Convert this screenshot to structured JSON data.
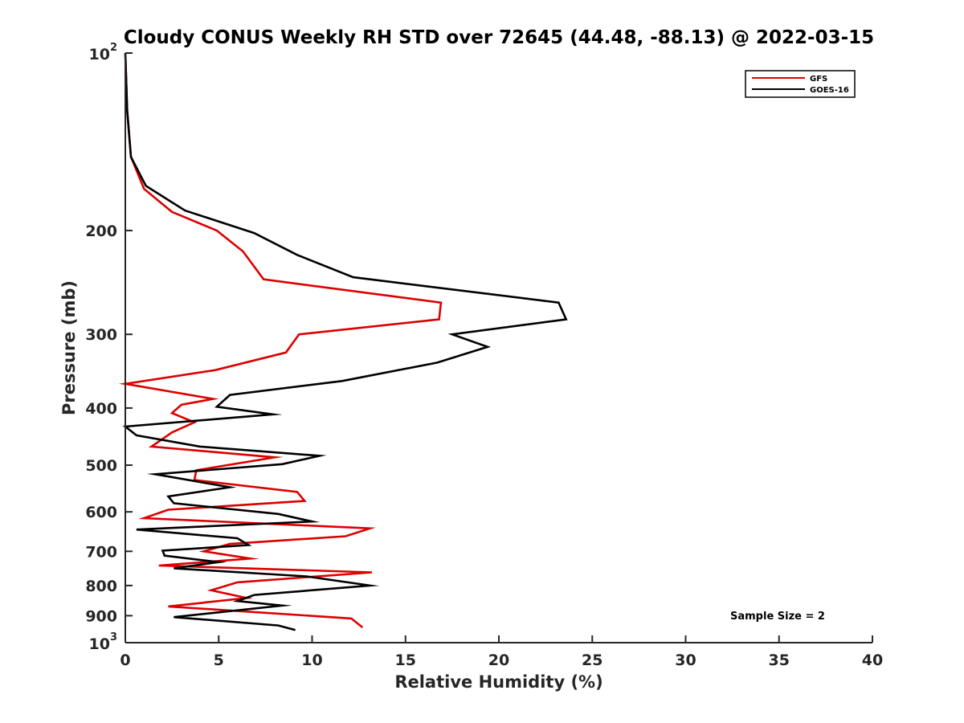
{
  "chart_data": {
    "type": "line",
    "title": "Cloudy CONUS Weekly RH STD over 72645 (44.48, -88.13) @ 2022-03-15",
    "xlabel": "Relative Humidity (%)",
    "ylabel": "Pressure (mb)",
    "xlim": [
      0,
      40
    ],
    "ylim": [
      100,
      1000
    ],
    "y_scale": "log",
    "y_reversed": true,
    "grid": false,
    "legend_position": "top-right",
    "x_ticks": [
      "0",
      "5",
      "10",
      "15",
      "20",
      "25",
      "30",
      "35",
      "40"
    ],
    "y_ticks": [
      {
        "value": 100,
        "base": "10",
        "exp": "2"
      },
      {
        "value": 200,
        "label": "200"
      },
      {
        "value": 300,
        "label": "300"
      },
      {
        "value": 400,
        "label": "400"
      },
      {
        "value": 500,
        "label": "500"
      },
      {
        "value": 600,
        "label": "600"
      },
      {
        "value": 700,
        "label": "700"
      },
      {
        "value": 800,
        "label": "800"
      },
      {
        "value": 900,
        "label": "900"
      },
      {
        "value": 1000,
        "base": "10",
        "exp": "3"
      }
    ],
    "series": [
      {
        "name": "GFS",
        "color": "#dd0000",
        "points": [
          [
            0,
            100
          ],
          [
            0.1,
            125
          ],
          [
            0.3,
            150
          ],
          [
            1.0,
            170
          ],
          [
            2.5,
            186
          ],
          [
            4.9,
            200
          ],
          [
            6.3,
            217
          ],
          [
            7.4,
            242
          ],
          [
            16.9,
            265
          ],
          [
            16.8,
            283
          ],
          [
            9.3,
            300
          ],
          [
            8.6,
            322
          ],
          [
            4.8,
            345
          ],
          [
            0,
            364
          ],
          [
            4.7,
            386
          ],
          [
            3.0,
            395
          ],
          [
            2.5,
            408
          ],
          [
            3.7,
            423
          ],
          [
            2.5,
            440
          ],
          [
            1.4,
            465
          ],
          [
            8.0,
            485
          ],
          [
            3.8,
            510
          ],
          [
            3.7,
            530
          ],
          [
            9.2,
            555
          ],
          [
            9.6,
            575
          ],
          [
            2.3,
            595
          ],
          [
            1.0,
            615
          ],
          [
            13.1,
            640
          ],
          [
            11.8,
            660
          ],
          [
            5.6,
            680
          ],
          [
            4.2,
            700
          ],
          [
            6.7,
            720
          ],
          [
            1.8,
            740
          ],
          [
            13.2,
            760
          ],
          [
            6.0,
            790
          ],
          [
            4.6,
            815
          ],
          [
            6.5,
            840
          ],
          [
            2.3,
            868
          ],
          [
            12.1,
            910
          ],
          [
            12.7,
            942
          ]
        ]
      },
      {
        "name": "GOES-16",
        "color": "#000000",
        "points": [
          [
            0,
            100
          ],
          [
            0.1,
            125
          ],
          [
            0.3,
            150
          ],
          [
            1.1,
            168
          ],
          [
            3.2,
            185
          ],
          [
            6.9,
            202
          ],
          [
            9.2,
            220
          ],
          [
            12.2,
            240
          ],
          [
            23.2,
            265
          ],
          [
            23.6,
            283
          ],
          [
            17.5,
            300
          ],
          [
            19.4,
            315
          ],
          [
            16.7,
            335
          ],
          [
            11.6,
            360
          ],
          [
            5.6,
            380
          ],
          [
            4.9,
            398
          ],
          [
            7.9,
            410
          ],
          [
            0,
            430
          ],
          [
            0.6,
            445
          ],
          [
            4.0,
            465
          ],
          [
            10.4,
            482
          ],
          [
            8.4,
            498
          ],
          [
            1.6,
            518
          ],
          [
            5.6,
            545
          ],
          [
            2.3,
            565
          ],
          [
            2.6,
            580
          ],
          [
            8.2,
            605
          ],
          [
            10.0,
            623
          ],
          [
            0.6,
            643
          ],
          [
            6.0,
            665
          ],
          [
            6.6,
            683
          ],
          [
            2.0,
            698
          ],
          [
            2.1,
            712
          ],
          [
            5.0,
            730
          ],
          [
            2.6,
            748
          ],
          [
            9.7,
            772
          ],
          [
            13.1,
            800
          ],
          [
            6.9,
            830
          ],
          [
            6.0,
            850
          ],
          [
            8.4,
            865
          ],
          [
            2.6,
            905
          ],
          [
            8.2,
            935
          ],
          [
            9.1,
            952
          ]
        ]
      }
    ],
    "annotation": "Sample Size = 2"
  }
}
